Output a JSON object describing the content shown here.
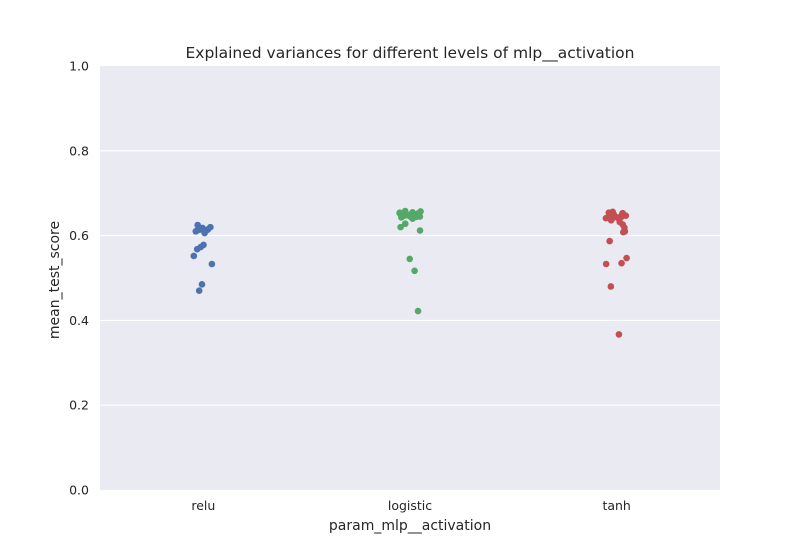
{
  "chart_data": {
    "type": "scatter",
    "subtype": "strip",
    "title": "Explained variances for different levels of mlp__activation",
    "xlabel": "param_mlp__activation",
    "ylabel": "mean_test_score",
    "ylim": [
      0.0,
      1.0
    ],
    "yticks": [
      "0.0",
      "0.2",
      "0.4",
      "0.6",
      "0.8",
      "1.0"
    ],
    "grid": true,
    "categories": [
      "relu",
      "logistic",
      "tanh"
    ],
    "colors": [
      "#4c72b0",
      "#55a868",
      "#c44e52"
    ],
    "series": [
      {
        "category": "relu",
        "values": [
          0.625,
          0.62,
          0.618,
          0.616,
          0.615,
          0.614,
          0.613,
          0.612,
          0.61,
          0.606,
          0.578,
          0.573,
          0.568,
          0.552,
          0.533,
          0.485,
          0.47
        ]
      },
      {
        "category": "logistic",
        "values": [
          0.658,
          0.657,
          0.655,
          0.654,
          0.653,
          0.652,
          0.651,
          0.65,
          0.65,
          0.649,
          0.648,
          0.648,
          0.647,
          0.646,
          0.645,
          0.645,
          0.644,
          0.643,
          0.64,
          0.628,
          0.62,
          0.612,
          0.545,
          0.517,
          0.422
        ]
      },
      {
        "category": "tanh",
        "values": [
          0.656,
          0.654,
          0.653,
          0.652,
          0.651,
          0.65,
          0.649,
          0.648,
          0.647,
          0.646,
          0.645,
          0.644,
          0.643,
          0.642,
          0.641,
          0.64,
          0.636,
          0.632,
          0.626,
          0.619,
          0.61,
          0.608,
          0.587,
          0.547,
          0.535,
          0.533,
          0.48,
          0.367
        ]
      }
    ]
  }
}
